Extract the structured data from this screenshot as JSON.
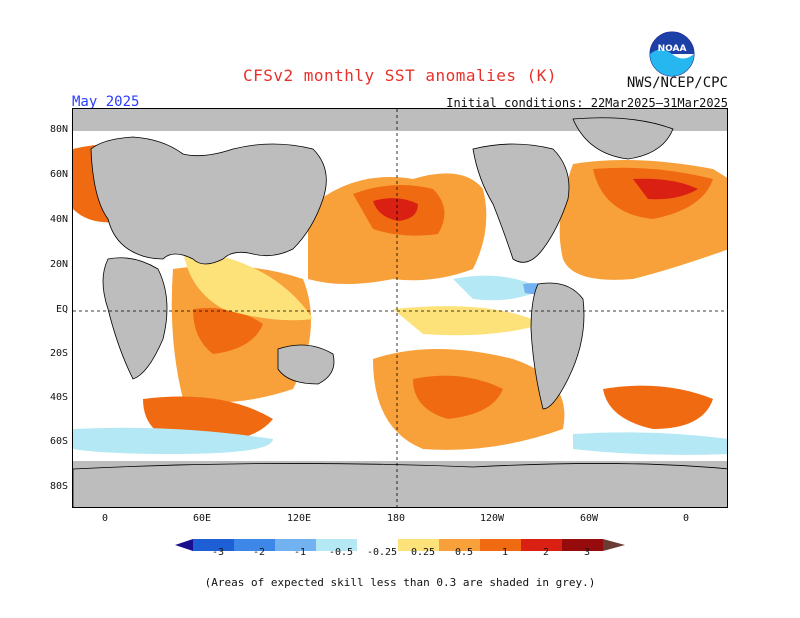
{
  "header": {
    "title": "CFSv2 monthly SST anomalies (K)",
    "agency": "NWS/NCEP/CPC",
    "month": "May 2025",
    "initial_conditions": "Initial conditions: 22Mar2025–31Mar2025",
    "logo_text": "NOAA"
  },
  "map": {
    "lat_labels": [
      "80N",
      "60N",
      "40N",
      "20N",
      "EQ",
      "20S",
      "40S",
      "60S",
      "80S"
    ],
    "lon_labels": [
      "0",
      "60E",
      "120E",
      "180",
      "120W",
      "60W",
      "0"
    ],
    "land_color": "#bdbdbd",
    "low_skill_color": "#bdbdbd"
  },
  "colorbar": {
    "ticks": [
      "-3",
      "-2",
      "-1",
      "-0.5",
      "-0.25",
      "0.25",
      "0.5",
      "1",
      "2",
      "3"
    ],
    "colors": [
      "#1a0f8c",
      "#1f5fd6",
      "#3c87e8",
      "#73b2f0",
      "#b5e8f5",
      "#ffffff",
      "#fde27a",
      "#f8a13a",
      "#f06a12",
      "#d92012",
      "#960c0c",
      "#6a3c33"
    ]
  },
  "footnote": "(Areas of expected skill less than 0.3 are shaded in grey.)"
}
